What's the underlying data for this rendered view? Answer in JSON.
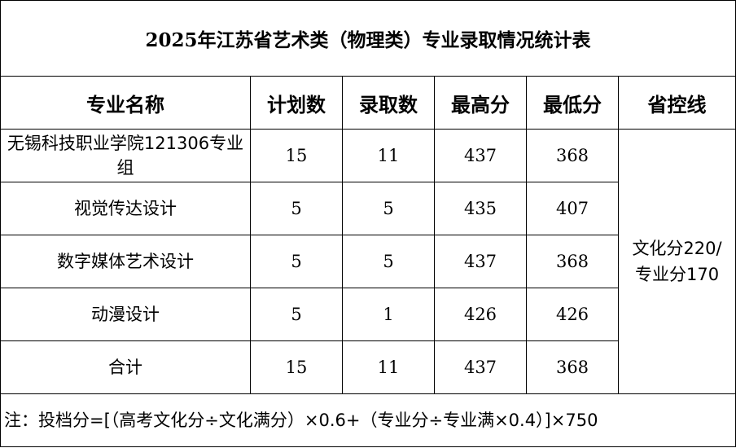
{
  "title": "2025年江苏省艺术类（物理类）专业录取情况统计表",
  "headers": [
    "专业名称",
    "计划数",
    "录取数",
    "最高分",
    "最低分",
    "省控线"
  ],
  "rows": [
    {
      "name": "无锡科技职业学院121306专业组",
      "plan": "15",
      "admitted": "11",
      "max": "437",
      "min": "368"
    },
    {
      "name": "视觉传达设计",
      "plan": "5",
      "admitted": "5",
      "max": "435",
      "min": "407"
    },
    {
      "name": "数字媒体艺术设计",
      "plan": "5",
      "admitted": "5",
      "max": "437",
      "min": "368"
    },
    {
      "name": "动漫设计",
      "plan": "5",
      "admitted": "1",
      "max": "426",
      "min": "426"
    },
    {
      "name": "合计",
      "plan": "15",
      "admitted": "11",
      "max": "437",
      "min": "368"
    }
  ],
  "control_line": "文化分220/专业分170",
  "note": "注：投档分=[（高考文化分÷文化满分）×0.6+（专业分÷专业满×0.4）]×750"
}
